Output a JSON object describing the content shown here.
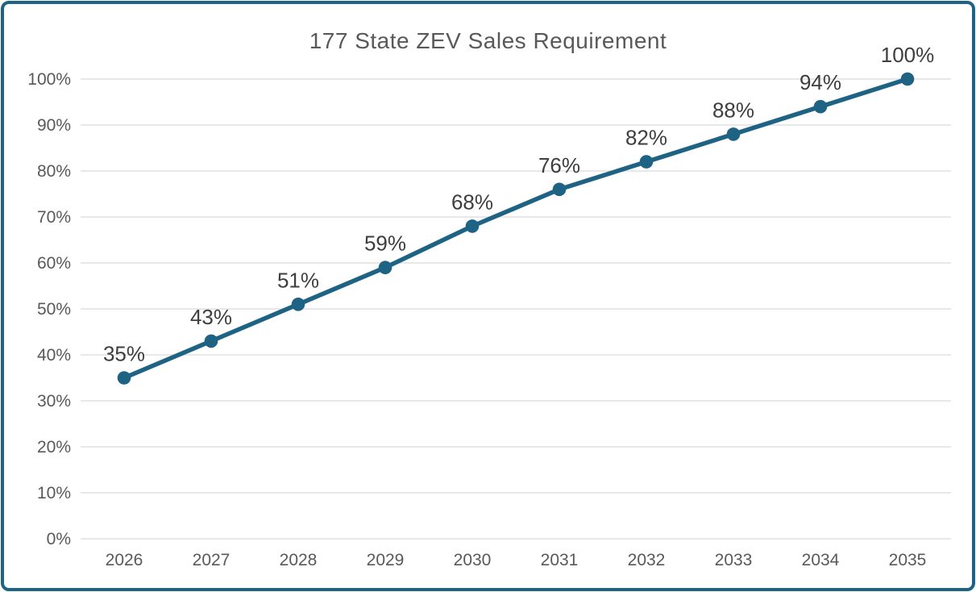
{
  "chart_data": {
    "type": "line",
    "title": "177 State ZEV Sales Requirement",
    "categories": [
      "2026",
      "2027",
      "2028",
      "2029",
      "2030",
      "2031",
      "2032",
      "2033",
      "2034",
      "2035"
    ],
    "values": [
      35,
      43,
      51,
      59,
      68,
      76,
      82,
      88,
      94,
      100
    ],
    "data_labels": [
      "35%",
      "43%",
      "51%",
      "59%",
      "68%",
      "76%",
      "82%",
      "88%",
      "94%",
      "100%"
    ],
    "ytick_labels": [
      "0%",
      "10%",
      "20%",
      "30%",
      "40%",
      "50%",
      "60%",
      "70%",
      "80%",
      "90%",
      "100%"
    ],
    "ytick_values": [
      0,
      10,
      20,
      30,
      40,
      50,
      60,
      70,
      80,
      90,
      100
    ],
    "ylim": [
      0,
      100
    ],
    "xlabel": "",
    "ylabel": "",
    "grid": true,
    "legend": "none",
    "colors": {
      "line": "#1E6384",
      "marker": "#1E6384",
      "frame_border": "#1E6384",
      "gridline": "#E1E1E1",
      "title_text": "#595959",
      "axis_text": "#595959",
      "data_label_text": "#3E3E3E",
      "background": "#FFFFFF"
    }
  }
}
